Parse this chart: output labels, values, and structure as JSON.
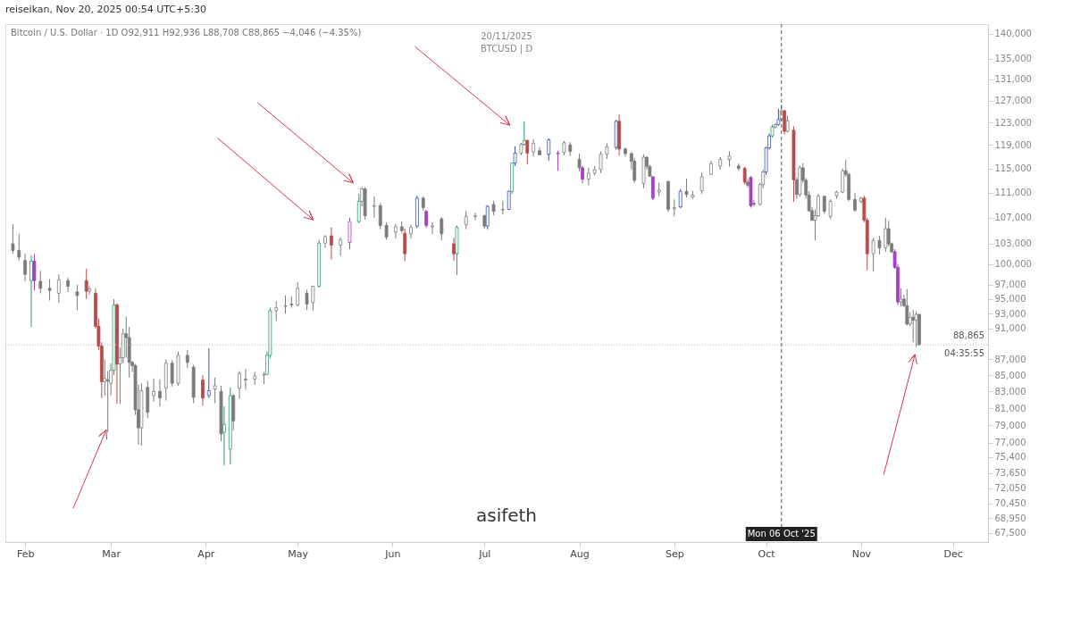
{
  "chart_data": {
    "type": "candlestick",
    "title": "Bitcoin / U.S. Dollar · 1D O92,911 H92,936 L88,708 C88,865 −4,046 (−4.35%)",
    "annotations": [
      "reiseikan, Nov 20, 2025 00:54 UTC+5:30",
      "20/11/2025",
      "BTCUSD | D",
      "asifeth",
      "04:35:55"
    ],
    "x": [
      "2025-01-28",
      "2025-01-30",
      "2025-02-01",
      "2025-02-03",
      "2025-02-04",
      "2025-02-06",
      "2025-02-09",
      "2025-02-12",
      "2025-02-15",
      "2025-02-18",
      "2025-02-21",
      "2025-02-22",
      "2025-02-24",
      "2025-02-25",
      "2025-02-26",
      "2025-02-27",
      "2025-02-28",
      "2025-03-01",
      "2025-03-02",
      "2025-03-03",
      "2025-03-04",
      "2025-03-05",
      "2025-03-06",
      "2025-03-07",
      "2025-03-08",
      "2025-03-09",
      "2025-03-10",
      "2025-03-11",
      "2025-03-13",
      "2025-03-15",
      "2025-03-17",
      "2025-03-19",
      "2025-03-21",
      "2025-03-23",
      "2025-03-26",
      "2025-03-28",
      "2025-03-31",
      "2025-04-02",
      "2025-04-04",
      "2025-04-06",
      "2025-04-07",
      "2025-04-09",
      "2025-04-10",
      "2025-04-12",
      "2025-04-14",
      "2025-04-17",
      "2025-04-20",
      "2025-04-21",
      "2025-04-22",
      "2025-04-24",
      "2025-04-27",
      "2025-04-29",
      "2025-05-01",
      "2025-05-04",
      "2025-05-06",
      "2025-05-08",
      "2025-05-10",
      "2025-05-12",
      "2025-05-15",
      "2025-05-18",
      "2025-05-21",
      "2025-05-22",
      "2025-05-23",
      "2025-05-26",
      "2025-05-28",
      "2025-05-30",
      "2025-06-02",
      "2025-06-04",
      "2025-06-05",
      "2025-06-07",
      "2025-06-09",
      "2025-06-11",
      "2025-06-12",
      "2025-06-14",
      "2025-06-17",
      "2025-06-21",
      "2025-06-22",
      "2025-06-25",
      "2025-06-28",
      "2025-07-01",
      "2025-07-02",
      "2025-07-04",
      "2025-07-07",
      "2025-07-09",
      "2025-07-10",
      "2025-07-11",
      "2025-07-13",
      "2025-07-14",
      "2025-07-15",
      "2025-07-17",
      "2025-07-19",
      "2025-07-22",
      "2025-07-25",
      "2025-07-27",
      "2025-07-29",
      "2025-08-01",
      "2025-08-02",
      "2025-08-04",
      "2025-08-06",
      "2025-08-08",
      "2025-08-10",
      "2025-08-13",
      "2025-08-14",
      "2025-08-16",
      "2025-08-18",
      "2025-08-19",
      "2025-08-22",
      "2025-08-23",
      "2025-08-24",
      "2025-08-25",
      "2025-08-27",
      "2025-08-30",
      "2025-09-01",
      "2025-09-03",
      "2025-09-05",
      "2025-09-07",
      "2025-09-10",
      "2025-09-13",
      "2025-09-16",
      "2025-09-19",
      "2025-09-22",
      "2025-09-24",
      "2025-09-25",
      "2025-09-26",
      "2025-09-27",
      "2025-09-29",
      "2025-09-30",
      "2025-10-01",
      "2025-10-02",
      "2025-10-03",
      "2025-10-04",
      "2025-10-05",
      "2025-10-06",
      "2025-10-07",
      "2025-10-08",
      "2025-10-10",
      "2025-10-11",
      "2025-10-12",
      "2025-10-13",
      "2025-10-14",
      "2025-10-15",
      "2025-10-16",
      "2025-10-17",
      "2025-10-18",
      "2025-10-20",
      "2025-10-22",
      "2025-10-24",
      "2025-10-26",
      "2025-10-27",
      "2025-10-28",
      "2025-10-30",
      "2025-11-01",
      "2025-11-02",
      "2025-11-03",
      "2025-11-05",
      "2025-11-07",
      "2025-11-09",
      "2025-11-10",
      "2025-11-11",
      "2025-11-12",
      "2025-11-13",
      "2025-11-14",
      "2025-11-15",
      "2025-11-16",
      "2025-11-17",
      "2025-11-18",
      "2025-11-19",
      "2025-11-20"
    ],
    "ohlc": [
      [
        103000,
        106000,
        101500,
        102000
      ],
      [
        102000,
        104500,
        100500,
        101000
      ],
      [
        100500,
        101500,
        97500,
        98500
      ],
      [
        97600,
        101300,
        91200,
        100400
      ],
      [
        100400,
        101500,
        96200,
        97600
      ],
      [
        97500,
        99000,
        95800,
        96500
      ],
      [
        96500,
        97800,
        94800,
        96200
      ],
      [
        95800,
        98500,
        94500,
        97700
      ],
      [
        97600,
        98000,
        96000,
        96800
      ],
      [
        96000,
        97000,
        93500,
        95500
      ],
      [
        97600,
        99300,
        95000,
        96100
      ],
      [
        96100,
        96800,
        95600,
        96400
      ],
      [
        95800,
        96500,
        91000,
        91300
      ],
      [
        91300,
        92300,
        88200,
        88700
      ],
      [
        88700,
        89200,
        82200,
        84200
      ],
      [
        84200,
        87000,
        82500,
        84600
      ],
      [
        84400,
        85500,
        78200,
        84300
      ],
      [
        84000,
        86500,
        82500,
        85600
      ],
      [
        85600,
        95000,
        85000,
        94200
      ],
      [
        94200,
        94400,
        81500,
        86400
      ],
      [
        86400,
        88500,
        81500,
        87200
      ],
      [
        87200,
        91000,
        86500,
        90300
      ],
      [
        90300,
        92600,
        87200,
        89800
      ],
      [
        89800,
        91200,
        84700,
        86600
      ],
      [
        86600,
        86800,
        85400,
        86200
      ],
      [
        86200,
        86400,
        80200,
        80800
      ],
      [
        80800,
        83800,
        76800,
        78700
      ],
      [
        78700,
        84000,
        76700,
        83100
      ],
      [
        83500,
        84300,
        79800,
        80500
      ],
      [
        82500,
        84600,
        81800,
        83000
      ],
      [
        83000,
        84500,
        81200,
        82200
      ],
      [
        83400,
        87000,
        81900,
        86500
      ],
      [
        86500,
        86900,
        83600,
        84000
      ],
      [
        84000,
        88000,
        83700,
        87500
      ],
      [
        87500,
        88200,
        85900,
        86600
      ],
      [
        86000,
        86300,
        81600,
        82300
      ],
      [
        84400,
        85000,
        81300,
        82200
      ],
      [
        82500,
        88400,
        82200,
        83100
      ],
      [
        83300,
        84700,
        81600,
        83700
      ],
      [
        83000,
        83700,
        77200,
        78000
      ],
      [
        78200,
        81200,
        74500,
        79100
      ],
      [
        76300,
        83500,
        74600,
        82500
      ],
      [
        82500,
        82700,
        78400,
        79500
      ],
      [
        83400,
        85500,
        82100,
        85200
      ],
      [
        84500,
        85800,
        83200,
        84400
      ],
      [
        84500,
        85400,
        83800,
        84900
      ],
      [
        85000,
        85400,
        83900,
        85100
      ],
      [
        85100,
        88000,
        85000,
        87500
      ],
      [
        87500,
        93800,
        87100,
        93400
      ],
      [
        93400,
        94700,
        92000,
        93800
      ],
      [
        94000,
        95500,
        93000,
        94100
      ],
      [
        94300,
        95400,
        93800,
        94200
      ],
      [
        94200,
        97400,
        94000,
        96500
      ],
      [
        95800,
        96300,
        93500,
        94300
      ],
      [
        94500,
        96900,
        93400,
        96800
      ],
      [
        96800,
        103600,
        96600,
        103100
      ],
      [
        103100,
        104300,
        102400,
        104100
      ],
      [
        104200,
        105500,
        100700,
        102800
      ],
      [
        102800,
        104000,
        101200,
        103600
      ],
      [
        103200,
        107000,
        102200,
        106400
      ],
      [
        106400,
        110800,
        106100,
        109600
      ],
      [
        109600,
        112000,
        108800,
        111600
      ],
      [
        111600,
        111900,
        106700,
        107300
      ],
      [
        108800,
        110400,
        107000,
        108900
      ],
      [
        108900,
        109300,
        105200,
        105800
      ],
      [
        105800,
        106300,
        103600,
        104000
      ],
      [
        104800,
        106000,
        103800,
        105600
      ],
      [
        105600,
        106400,
        104600,
        105000
      ],
      [
        104600,
        105300,
        100400,
        101500
      ],
      [
        104500,
        105900,
        103800,
        105500
      ],
      [
        105700,
        110500,
        105400,
        110100
      ],
      [
        110100,
        110400,
        108100,
        108600
      ],
      [
        108000,
        108200,
        105400,
        105800
      ],
      [
        105600,
        106300,
        104500,
        105700
      ],
      [
        106800,
        107100,
        103500,
        104500
      ],
      [
        103000,
        103900,
        100500,
        101500
      ],
      [
        101500,
        105800,
        98400,
        105500
      ],
      [
        105900,
        108100,
        105200,
        107200
      ],
      [
        107200,
        107800,
        106600,
        107300
      ],
      [
        107300,
        107500,
        105300,
        105700
      ],
      [
        105700,
        109000,
        105200,
        108800
      ],
      [
        109100,
        109700,
        107400,
        108000
      ],
      [
        108200,
        109700,
        107500,
        108300
      ],
      [
        108300,
        111300,
        108200,
        111200
      ],
      [
        111200,
        116000,
        110800,
        115900
      ],
      [
        115900,
        118800,
        115400,
        117600
      ],
      [
        117600,
        119400,
        117200,
        119100
      ],
      [
        119100,
        123200,
        118900,
        119800
      ],
      [
        119800,
        119900,
        115700,
        117600
      ],
      [
        117800,
        120000,
        117000,
        119300
      ],
      [
        118000,
        118600,
        117200,
        117300
      ],
      [
        117400,
        120200,
        116300,
        119900
      ],
      [
        117600,
        118000,
        114600,
        117500
      ],
      [
        117700,
        119700,
        117200,
        119400
      ],
      [
        119000,
        119500,
        117100,
        117900
      ],
      [
        116500,
        117500,
        114500,
        115100
      ],
      [
        115100,
        115400,
        112500,
        113200
      ],
      [
        113200,
        115100,
        112200,
        114200
      ],
      [
        114200,
        115400,
        113800,
        114800
      ],
      [
        114800,
        117900,
        114200,
        117400
      ],
      [
        117400,
        119300,
        116600,
        118700
      ],
      [
        118600,
        123500,
        118200,
        123200
      ],
      [
        123200,
        124400,
        117200,
        118300
      ],
      [
        118300,
        118600,
        117000,
        117500
      ],
      [
        117500,
        117800,
        114800,
        116200
      ],
      [
        116200,
        116700,
        112600,
        113000
      ],
      [
        112500,
        117400,
        111700,
        116900
      ],
      [
        116900,
        117000,
        114800,
        115300
      ],
      [
        115300,
        115600,
        113600,
        113700
      ],
      [
        113600,
        113700,
        109800,
        110100
      ],
      [
        111100,
        112600,
        110400,
        111400
      ],
      [
        112800,
        113000,
        107900,
        108300
      ],
      [
        108400,
        109900,
        107200,
        108600
      ],
      [
        108700,
        111600,
        108500,
        111200
      ],
      [
        111200,
        113300,
        110200,
        110700
      ],
      [
        110300,
        111300,
        110000,
        110600
      ],
      [
        111300,
        114300,
        110800,
        113600
      ],
      [
        114000,
        116300,
        113900,
        115800
      ],
      [
        115400,
        116900,
        114800,
        116500
      ],
      [
        116500,
        117900,
        115300,
        117100
      ],
      [
        115400,
        115800,
        114600,
        115000
      ],
      [
        115000,
        115300,
        112300,
        112700
      ],
      [
        112700,
        113200,
        111800,
        112200
      ],
      [
        113500,
        113700,
        108600,
        108900
      ],
      [
        109300,
        109800,
        108800,
        109100
      ],
      [
        109100,
        112600,
        108900,
        112300
      ],
      [
        112300,
        114800,
        111700,
        114400
      ],
      [
        114400,
        118700,
        113900,
        118500
      ],
      [
        118500,
        121000,
        118200,
        120600
      ],
      [
        120600,
        122600,
        120300,
        122200
      ],
      [
        122200,
        122900,
        121900,
        122600
      ],
      [
        122600,
        125500,
        122400,
        123500
      ],
      [
        123500,
        126200,
        123200,
        125100
      ],
      [
        125100,
        125300,
        120800,
        121400
      ],
      [
        121400,
        124200,
        121200,
        123300
      ],
      [
        121600,
        122300,
        109500,
        113100
      ],
      [
        113100,
        113500,
        110000,
        110700
      ],
      [
        110700,
        115500,
        110300,
        115100
      ],
      [
        115100,
        115900,
        112600,
        113000
      ],
      [
        113000,
        113400,
        110000,
        110600
      ],
      [
        110600,
        111200,
        107900,
        108100
      ],
      [
        108100,
        108700,
        106500,
        106600
      ],
      [
        106600,
        108300,
        103500,
        107300
      ],
      [
        107300,
        110800,
        107100,
        110400
      ],
      [
        110400,
        110500,
        107600,
        108000
      ],
      [
        107200,
        109900,
        106800,
        109600
      ],
      [
        110500,
        111300,
        110000,
        111100
      ],
      [
        111100,
        115000,
        110900,
        114600
      ],
      [
        114600,
        116400,
        113600,
        114000
      ],
      [
        114000,
        114300,
        109600,
        109900
      ],
      [
        109900,
        111000,
        107900,
        108200
      ],
      [
        109600,
        110300,
        109300,
        110100
      ],
      [
        110100,
        110500,
        106300,
        106600
      ],
      [
        106600,
        107000,
        99100,
        101500
      ],
      [
        101500,
        103900,
        98900,
        103500
      ],
      [
        103500,
        104200,
        101400,
        102400
      ],
      [
        102400,
        107000,
        101800,
        105300
      ],
      [
        105300,
        106500,
        102600,
        103000
      ],
      [
        103000,
        103200,
        101600,
        101800
      ],
      [
        101800,
        102200,
        99300,
        99500
      ],
      [
        99500,
        100000,
        94200,
        94600
      ],
      [
        94600,
        96500,
        94000,
        95000
      ],
      [
        95000,
        95600,
        93900,
        94100
      ],
      [
        94100,
        96400,
        91400,
        91600
      ],
      [
        91600,
        93200,
        91300,
        92500
      ],
      [
        92500,
        93500,
        89200,
        92100
      ],
      [
        92100,
        93300,
        88600,
        92911
      ],
      [
        92911,
        92936,
        88708,
        88865
      ]
    ],
    "colors": [
      "#7b7b7b",
      "#7b7b7b",
      "#7b7b7b",
      "#2f9a6a",
      "#a53fc4",
      "#7b7b7b",
      "#7b7b7b",
      "#7b7b7b",
      "#7b7b7b",
      "#7b7b7b",
      "#b84a4a",
      "#7b7b7b",
      "#b84a4a",
      "#b84a4a",
      "#b84a4a",
      "#7b7b7b",
      "#7b7b7b",
      "#7b7b7b",
      "#2f9a6a",
      "#b84a4a",
      "#7b7b7b",
      "#7b7b7b",
      "#7b7b7b",
      "#7b7b7b",
      "#7b7b7b",
      "#7b7b7b",
      "#7b7b7b",
      "#7b7b7b",
      "#7b7b7b",
      "#7b7b7b",
      "#7b7b7b",
      "#7b7b7b",
      "#7b7b7b",
      "#7b7b7b",
      "#7b7b7b",
      "#7b7b7b",
      "#b84a4a",
      "#3551b0",
      "#7b7b7b",
      "#7b7b7b",
      "#2f9a6a",
      "#2f9a6a",
      "#7b7b7b",
      "#7b7b7b",
      "#7b7b7b",
      "#7b7b7b",
      "#7b7b7b",
      "#2f9a6a",
      "#2f9a6a",
      "#7b7b7b",
      "#7b7b7b",
      "#7b7b7b",
      "#7b7b7b",
      "#7b7b7b",
      "#7b7b7b",
      "#2f9a6a",
      "#7b7b7b",
      "#b84a4a",
      "#7b7b7b",
      "#a53fc4",
      "#2f9a6a",
      "#7b7b7b",
      "#7b7b7b",
      "#7b7b7b",
      "#7b7b7b",
      "#7b7b7b",
      "#7b7b7b",
      "#7b7b7b",
      "#b84a4a",
      "#7b7b7b",
      "#3551b0",
      "#7b7b7b",
      "#a53fc4",
      "#7b7b7b",
      "#7b7b7b",
      "#b84a4a",
      "#2f9a6a",
      "#7b7b7b",
      "#7b7b7b",
      "#7b7b7b",
      "#3551b0",
      "#7b7b7b",
      "#7b7b7b",
      "#3551b0",
      "#2f9a6a",
      "#3551b0",
      "#7b7b7b",
      "#2f9a6a",
      "#b84a4a",
      "#7b7b7b",
      "#7b7b7b",
      "#3551b0",
      "#a53fc4",
      "#7b7b7b",
      "#7b7b7b",
      "#7b7b7b",
      "#a53fc4",
      "#7b7b7b",
      "#7b7b7b",
      "#7b7b7b",
      "#7b7b7b",
      "#3551b0",
      "#b84a4a",
      "#7b7b7b",
      "#7b7b7b",
      "#7b7b7b",
      "#7b7b7b",
      "#7b7b7b",
      "#7b7b7b",
      "#a53fc4",
      "#7b7b7b",
      "#7b7b7b",
      "#7b7b7b",
      "#3551b0",
      "#7b7b7b",
      "#7b7b7b",
      "#7b7b7b",
      "#7b7b7b",
      "#7b7b7b",
      "#7b7b7b",
      "#7b7b7b",
      "#b84a4a",
      "#7b7b7b",
      "#a53fc4",
      "#7b7b7b",
      "#7b7b7b",
      "#7b7b7b",
      "#3551b0",
      "#3551b0",
      "#2f9a6a",
      "#7b7b7b",
      "#3551b0",
      "#7b7b7b",
      "#b84a4a",
      "#7b7b7b",
      "#b84a4a",
      "#7b7b7b",
      "#7b7b7b",
      "#7b7b7b",
      "#7b7b7b",
      "#7b7b7b",
      "#7b7b7b",
      "#7b7b7b",
      "#7b7b7b",
      "#7b7b7b",
      "#7b7b7b",
      "#7b7b7b",
      "#7b7b7b",
      "#7b7b7b",
      "#7b7b7b",
      "#7b7b7b",
      "#7b7b7b",
      "#b84a4a",
      "#b84a4a",
      "#7b7b7b",
      "#7b7b7b",
      "#7b7b7b",
      "#7b7b7b",
      "#7b7b7b",
      "#a53fc4",
      "#a53fc4",
      "#7b7b7b",
      "#7b7b7b",
      "#7b7b7b",
      "#7b7b7b",
      "#7b7b7b",
      "#7b7b7b",
      "#7b7b7b"
    ],
    "xlim": [
      "2025-01-27",
      "2025-12-11"
    ],
    "xticks": [
      {
        "value": "2025-02-01",
        "label": "Feb"
      },
      {
        "value": "2025-03-01",
        "label": "Mar"
      },
      {
        "value": "2025-04-01",
        "label": "Apr"
      },
      {
        "value": "2025-05-01",
        "label": "May"
      },
      {
        "value": "2025-06-01",
        "label": "Jun"
      },
      {
        "value": "2025-07-01",
        "label": "Jul"
      },
      {
        "value": "2025-08-01",
        "label": "Aug"
      },
      {
        "value": "2025-09-01",
        "label": "Sep"
      },
      {
        "value": "2025-10-01",
        "label": "Oct"
      },
      {
        "value": "2025-11-01",
        "label": "Nov"
      },
      {
        "value": "2025-12-01",
        "label": "Dec"
      }
    ],
    "ylim": [
      66600,
      142000
    ],
    "yticks": [
      {
        "value": 67500,
        "label": "67,500"
      },
      {
        "value": 68950,
        "label": "68,950"
      },
      {
        "value": 70450,
        "label": "70,450"
      },
      {
        "value": 72050,
        "label": "72,050"
      },
      {
        "value": 73650,
        "label": "73,650"
      },
      {
        "value": 75400,
        "label": "75,400"
      },
      {
        "value": 77000,
        "label": "77,000"
      },
      {
        "value": 79000,
        "label": "79,000"
      },
      {
        "value": 81000,
        "label": "81,000"
      },
      {
        "value": 83000,
        "label": "83,000"
      },
      {
        "value": 85000,
        "label": "85,000"
      },
      {
        "value": 87000,
        "label": "87,000"
      },
      {
        "value": 91000,
        "label": "91,000"
      },
      {
        "value": 93000,
        "label": "93,000"
      },
      {
        "value": 95000,
        "label": "95,000"
      },
      {
        "value": 97000,
        "label": "97,000"
      },
      {
        "value": 100000,
        "label": "100,000"
      },
      {
        "value": 103000,
        "label": "103,000"
      },
      {
        "value": 107000,
        "label": "107,000"
      },
      {
        "value": 111000,
        "label": "111,000"
      },
      {
        "value": 115000,
        "label": "115,000"
      },
      {
        "value": 119000,
        "label": "119,000"
      },
      {
        "value": 123000,
        "label": "123,000"
      },
      {
        "value": 127000,
        "label": "127,000"
      },
      {
        "value": 131000,
        "label": "131,000"
      },
      {
        "value": 135000,
        "label": "135,000"
      },
      {
        "value": 140000,
        "label": "140,000"
      }
    ],
    "log": "y",
    "grid": false,
    "ref_lines": [
      {
        "axis": "y",
        "value": 88865,
        "label": "88,865",
        "color": "#b0b0b0",
        "line_style": "dotted"
      },
      {
        "axis": "x",
        "value": "2025-10-06",
        "label": "Mon 06 Oct '25",
        "color": "#555555",
        "line_style": "dashed"
      }
    ]
  }
}
